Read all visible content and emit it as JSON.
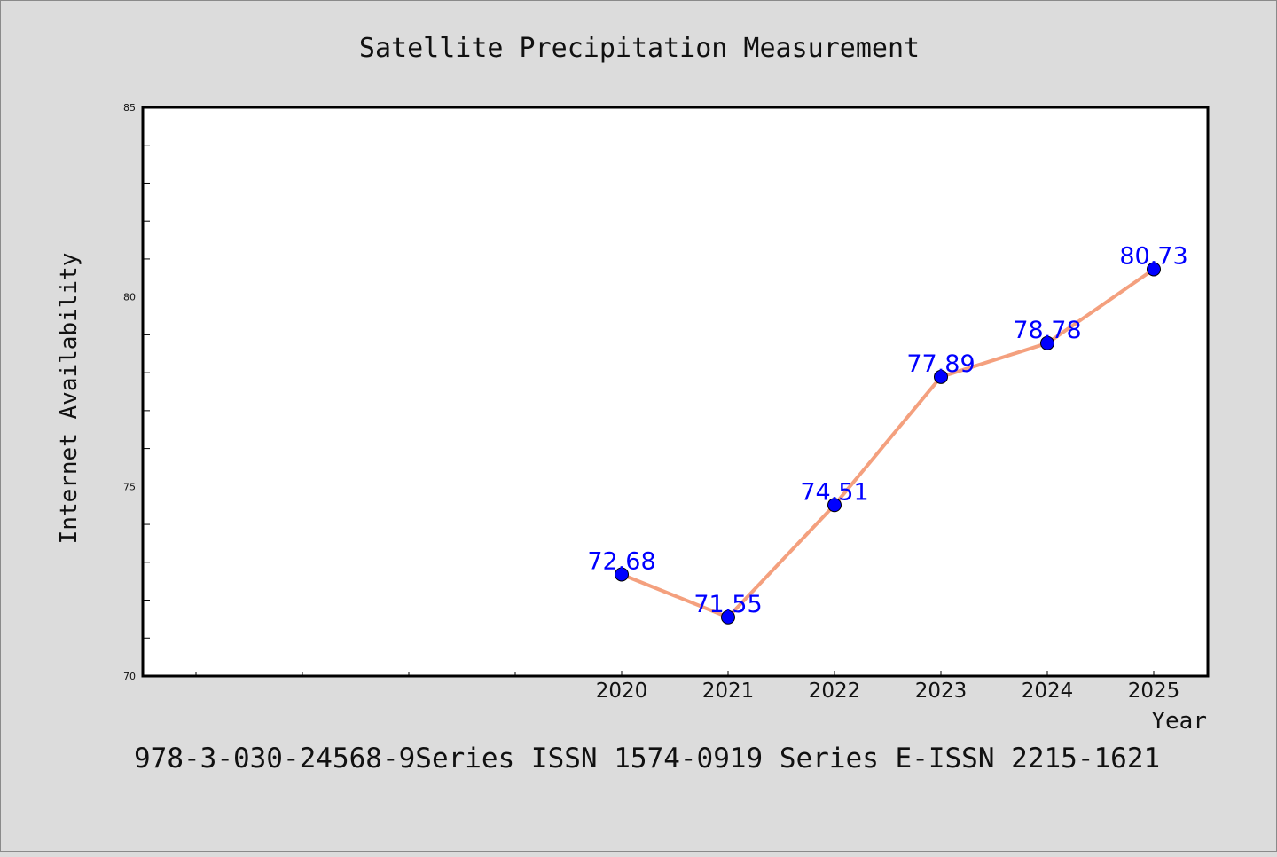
{
  "chart_data": {
    "type": "line",
    "title": "Satellite Precipitation Measurement",
    "xlabel": "Year",
    "ylabel": "Internet Availability",
    "categories": [
      "2020",
      "2021",
      "2022",
      "2023",
      "2024",
      "2025"
    ],
    "values": [
      72.68,
      71.55,
      74.51,
      77.89,
      78.78,
      80.73
    ],
    "value_labels": [
      "72.68",
      "71.55",
      "74.51",
      "77.89",
      "78.78",
      "80.73"
    ],
    "ylim": [
      70,
      85
    ],
    "yticks": [
      "70",
      "75",
      "80",
      "85"
    ],
    "grid": false,
    "line_color": "#f4a07e",
    "marker_color": "#0000ff",
    "label_color": "#0000ff"
  },
  "footer": "978-3-030-24568-9Series ISSN 1574-0919 Series E-ISSN 2215-1621"
}
